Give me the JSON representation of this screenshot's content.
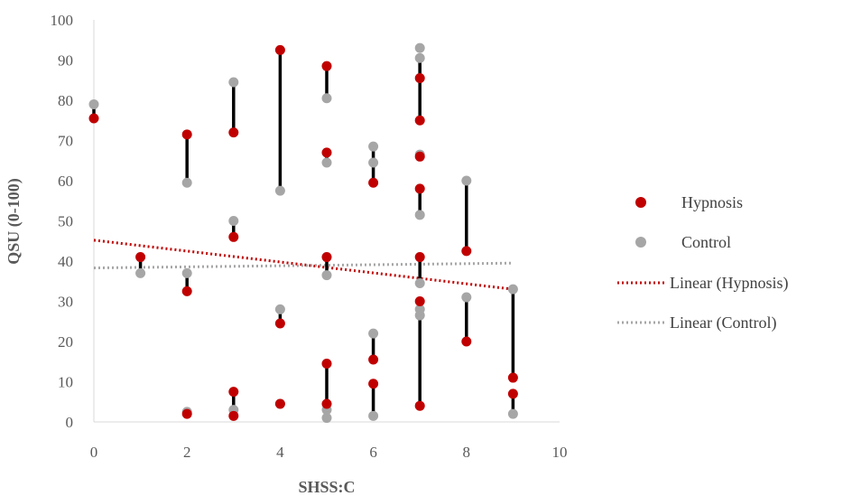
{
  "chart_data": {
    "type": "scatter",
    "xlabel": "SHSS:C",
    "ylabel": "QSU (0-100)",
    "xlim": [
      0,
      10
    ],
    "ylim": [
      0,
      100
    ],
    "x_ticks": [
      "0",
      "2",
      "4",
      "6",
      "8",
      "10"
    ],
    "y_ticks": [
      "0",
      "10",
      "20",
      "30",
      "40",
      "50",
      "60",
      "70",
      "80",
      "90",
      "100"
    ],
    "grid": false,
    "legend_position": "right",
    "colors": {
      "hypnosis": "#c00000",
      "control": "#a6a6a6",
      "connector": "#000000",
      "axis": "#d9d9d9"
    },
    "series": [
      {
        "name": "Hypnosis",
        "points": [
          [
            0,
            75.5
          ],
          [
            1,
            41
          ],
          [
            2,
            71.5
          ],
          [
            2,
            32.5
          ],
          [
            2,
            2
          ],
          [
            3,
            72
          ],
          [
            3,
            46
          ],
          [
            3,
            7.5
          ],
          [
            3,
            1.5
          ],
          [
            4,
            92.5
          ],
          [
            4,
            24.5
          ],
          [
            4,
            4.5
          ],
          [
            5,
            88.5
          ],
          [
            5,
            67
          ],
          [
            5,
            41
          ],
          [
            5,
            14.5
          ],
          [
            5,
            4.5
          ],
          [
            6,
            59.5
          ],
          [
            6,
            15.5
          ],
          [
            6,
            9.5
          ],
          [
            7,
            85.5
          ],
          [
            7,
            75
          ],
          [
            7,
            66
          ],
          [
            7,
            58
          ],
          [
            7,
            41
          ],
          [
            7,
            30
          ],
          [
            7,
            4
          ],
          [
            8,
            42.5
          ],
          [
            8,
            20
          ],
          [
            9,
            11
          ],
          [
            9,
            7
          ]
        ]
      },
      {
        "name": "Control",
        "points": [
          [
            0,
            79
          ],
          [
            1,
            37
          ],
          [
            2,
            59.5
          ],
          [
            2,
            37
          ],
          [
            2,
            2.5
          ],
          [
            3,
            84.5
          ],
          [
            3,
            50
          ],
          [
            3,
            3
          ],
          [
            4,
            57.5
          ],
          [
            4,
            28
          ],
          [
            4,
            4.5
          ],
          [
            5,
            80.5
          ],
          [
            5,
            64.5
          ],
          [
            5,
            36.5
          ],
          [
            5,
            3
          ],
          [
            5,
            1
          ],
          [
            6,
            68.5
          ],
          [
            6,
            64.5
          ],
          [
            6,
            22
          ],
          [
            6,
            1.5
          ],
          [
            7,
            93
          ],
          [
            7,
            90.5
          ],
          [
            7,
            66.5
          ],
          [
            7,
            51.5
          ],
          [
            7,
            34.5
          ],
          [
            7,
            28
          ],
          [
            7,
            26.5
          ],
          [
            8,
            60
          ],
          [
            8,
            31
          ],
          [
            9,
            33
          ],
          [
            9,
            2
          ]
        ]
      },
      {
        "name": "Linear (Hypnosis)",
        "line": [
          [
            0,
            45.2
          ],
          [
            9,
            33
          ]
        ]
      },
      {
        "name": "Linear (Control)",
        "line": [
          [
            0,
            38.3
          ],
          [
            9,
            39.5
          ]
        ]
      }
    ],
    "connectors": [
      [
        0,
        75.5,
        79
      ],
      [
        1,
        41,
        37
      ],
      [
        2,
        71.5,
        59.5
      ],
      [
        2,
        32.5,
        37
      ],
      [
        2,
        2,
        2.5
      ],
      [
        3,
        72,
        84.5
      ],
      [
        3,
        46,
        50
      ],
      [
        3,
        7.5,
        3
      ],
      [
        3,
        1.5,
        3
      ],
      [
        4,
        92.5,
        57.5
      ],
      [
        4,
        24.5,
        28
      ],
      [
        5,
        88.5,
        80.5
      ],
      [
        5,
        67,
        64.5
      ],
      [
        5,
        41,
        36.5
      ],
      [
        5,
        14.5,
        3
      ],
      [
        5,
        4.5,
        1
      ],
      [
        6,
        59.5,
        64.5
      ],
      [
        6,
        64.5,
        68.5
      ],
      [
        6,
        15.5,
        22
      ],
      [
        6,
        9.5,
        1.5
      ],
      [
        7,
        85.5,
        90.5
      ],
      [
        7,
        75,
        90.5
      ],
      [
        7,
        66,
        66.5
      ],
      [
        7,
        58,
        51.5
      ],
      [
        7,
        41,
        34.5
      ],
      [
        7,
        30,
        4
      ],
      [
        8,
        42.5,
        60
      ],
      [
        8,
        20,
        31
      ],
      [
        9,
        11,
        33
      ],
      [
        9,
        7,
        2
      ]
    ]
  }
}
